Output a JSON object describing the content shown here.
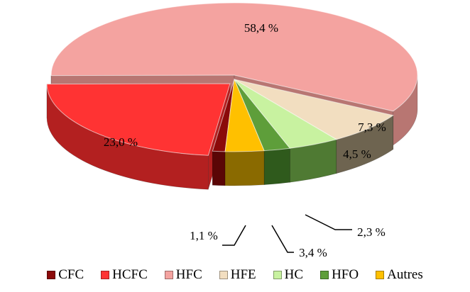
{
  "chart_data": {
    "type": "pie",
    "style": "3d-exploded",
    "title": "",
    "legend_position": "bottom",
    "series": [
      {
        "name": "CFC",
        "value": 1.1,
        "label": "1,1 %",
        "color": "#8B0A0A",
        "side_color": "#5a0606"
      },
      {
        "name": "HCFC",
        "value": 23.0,
        "label": "23,0 %",
        "color": "#FF3333",
        "side_color": "#b32020"
      },
      {
        "name": "HFC",
        "value": 58.4,
        "label": "58,4 %",
        "color": "#F4A3A0",
        "side_color": "#b87672"
      },
      {
        "name": "HFE",
        "value": 7.3,
        "label": "7,3 %",
        "color": "#F2DEC0",
        "side_color": "#6e6450"
      },
      {
        "name": "HC",
        "value": 4.5,
        "label": "4,5 %",
        "color": "#C8F2A0",
        "side_color": "#4f7a33"
      },
      {
        "name": "HFO",
        "value": 2.3,
        "label": "2,3 %",
        "color": "#5E9E3A",
        "side_color": "#2f5a1c"
      },
      {
        "name": "Autres",
        "value": 3.4,
        "label": "3,4 %",
        "color": "#FFC000",
        "side_color": "#8a6a00"
      }
    ]
  }
}
